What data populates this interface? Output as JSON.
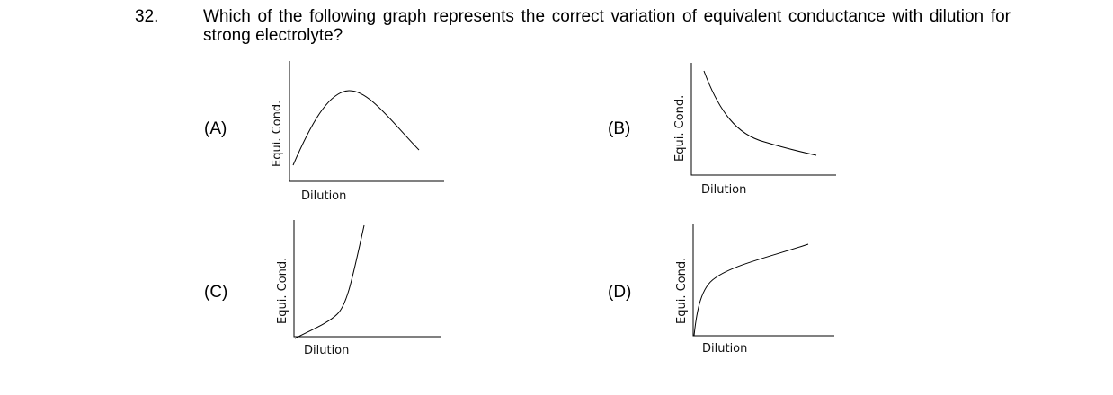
{
  "question": {
    "number": "32.",
    "text": "Which of the following graph represents the correct variation of equivalent conductance with dilution for strong electrolyte?"
  },
  "options": [
    {
      "label": "(A)",
      "ylabel": "Equi. Cond.",
      "xlabel": "Dilution"
    },
    {
      "label": "(B)",
      "ylabel": "Equi. Cond.",
      "xlabel": "Dilution"
    },
    {
      "label": "(C)",
      "ylabel": "Equi. Cond.",
      "xlabel": "Dilution"
    },
    {
      "label": "(D)",
      "ylabel": "Equi. Cond.",
      "xlabel": "Dilution"
    }
  ]
}
